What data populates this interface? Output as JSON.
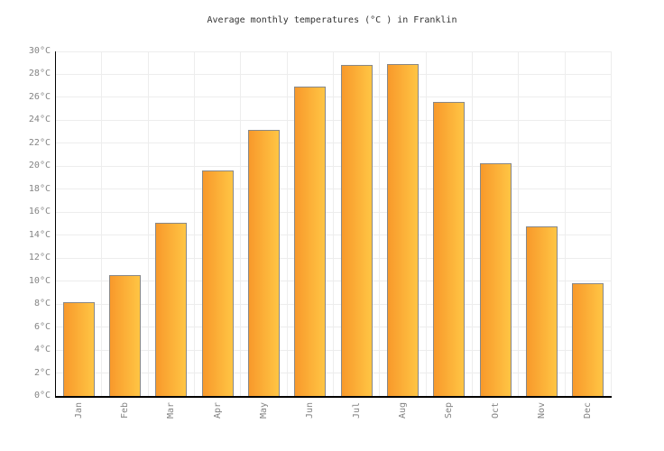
{
  "chart_data": {
    "type": "bar",
    "title": "Average monthly temperatures (°C ) in Franklin",
    "categories": [
      "Jan",
      "Feb",
      "Mar",
      "Apr",
      "May",
      "Jun",
      "Jul",
      "Aug",
      "Sep",
      "Oct",
      "Nov",
      "Dec"
    ],
    "values": [
      8.2,
      10.5,
      15.1,
      19.6,
      23.2,
      26.9,
      28.8,
      28.9,
      25.6,
      20.3,
      14.8,
      9.8
    ],
    "unit": "°C",
    "xlabel": "",
    "ylabel": "",
    "ylim": [
      0,
      30
    ],
    "ytick_step": 2,
    "y_ticks": [
      "0°C",
      "2°C",
      "4°C",
      "6°C",
      "8°C",
      "10°C",
      "12°C",
      "14°C",
      "16°C",
      "18°C",
      "20°C",
      "22°C",
      "24°C",
      "26°C",
      "28°C",
      "30°C"
    ],
    "grid": true,
    "legend_position": "none",
    "colors": {
      "bar_gradient_left": "#F8992B",
      "bar_gradient_right": "#FFC544",
      "bar_border": "#888888",
      "gridline": "#EDEDED",
      "axis_line": "#000000",
      "tick_label": "#848484",
      "title_color": "#333333",
      "background": "#FFFFFF"
    }
  }
}
